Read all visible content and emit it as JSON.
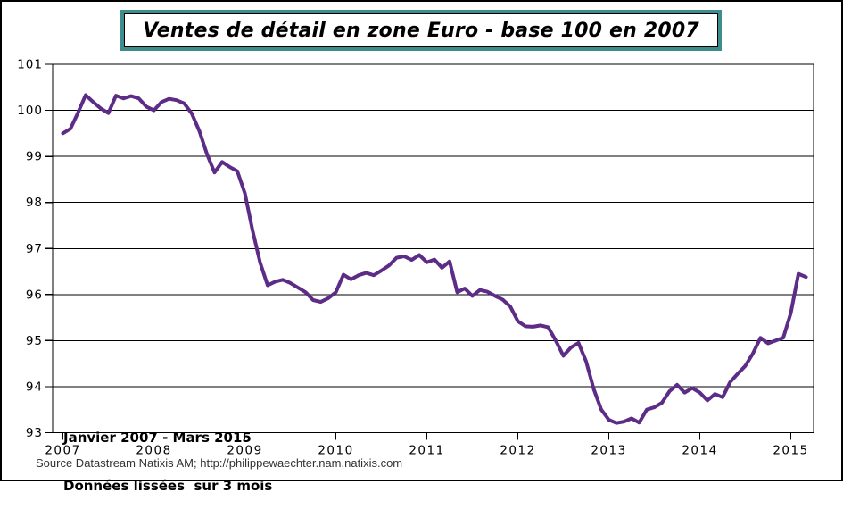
{
  "title": "Ventes de détail en zone Euro - base 100 en 2007",
  "annotation": {
    "line1": "Janvier 2007 - Mars 2015",
    "line2": "Données lissées  sur 3 mois"
  },
  "source": "Source Datastream Natixis AM; http://philippewaechter.nam.natixis.com",
  "colors": {
    "line": "#5C2C86",
    "title_border": "#3F8C8C",
    "grid": "#000000",
    "axis": "#000000",
    "tick_label": "#000000",
    "source_text": "#333333",
    "background": "#FFFFFF",
    "frame_border": "#000000"
  },
  "chart_data": {
    "type": "line",
    "title": "Ventes de détail en zone Euro - base 100 en 2007",
    "xlabel": "",
    "ylabel": "",
    "x_unit": "month",
    "x_start_label": "Janvier 2007",
    "x_end_label": "Mars 2015",
    "x_tick_labels": [
      "2007",
      "2008",
      "2009",
      "2010",
      "2011",
      "2012",
      "2013",
      "2014",
      "2015"
    ],
    "y_tick_labels": [
      93,
      94,
      95,
      96,
      97,
      98,
      99,
      100,
      101
    ],
    "ylim": [
      93,
      101
    ],
    "grid": "horizontal",
    "legend": "none",
    "line_color": "#5C2C86",
    "values": [
      99.5,
      99.6,
      99.95,
      100.33,
      100.18,
      100.04,
      99.94,
      100.32,
      100.26,
      100.31,
      100.26,
      100.08,
      100.0,
      100.18,
      100.25,
      100.22,
      100.15,
      99.93,
      99.55,
      99.05,
      98.65,
      98.88,
      98.77,
      98.68,
      98.2,
      97.4,
      96.7,
      96.2,
      96.28,
      96.32,
      96.25,
      96.15,
      96.05,
      95.88,
      95.84,
      95.92,
      96.05,
      96.43,
      96.33,
      96.42,
      96.47,
      96.42,
      96.52,
      96.63,
      96.8,
      96.83,
      96.75,
      96.86,
      96.7,
      96.76,
      96.58,
      96.72,
      96.05,
      96.13,
      95.97,
      96.1,
      96.06,
      95.97,
      95.89,
      95.74,
      95.42,
      95.31,
      95.3,
      95.33,
      95.29,
      95.0,
      94.67,
      94.85,
      94.95,
      94.55,
      93.95,
      93.5,
      93.28,
      93.21,
      93.24,
      93.31,
      93.22,
      93.5,
      93.55,
      93.65,
      93.9,
      94.04,
      93.87,
      93.97,
      93.87,
      93.7,
      93.84,
      93.77,
      94.1,
      94.28,
      94.45,
      94.72,
      95.06,
      94.94,
      95.0,
      95.06,
      95.6,
      96.45,
      96.38
    ]
  }
}
